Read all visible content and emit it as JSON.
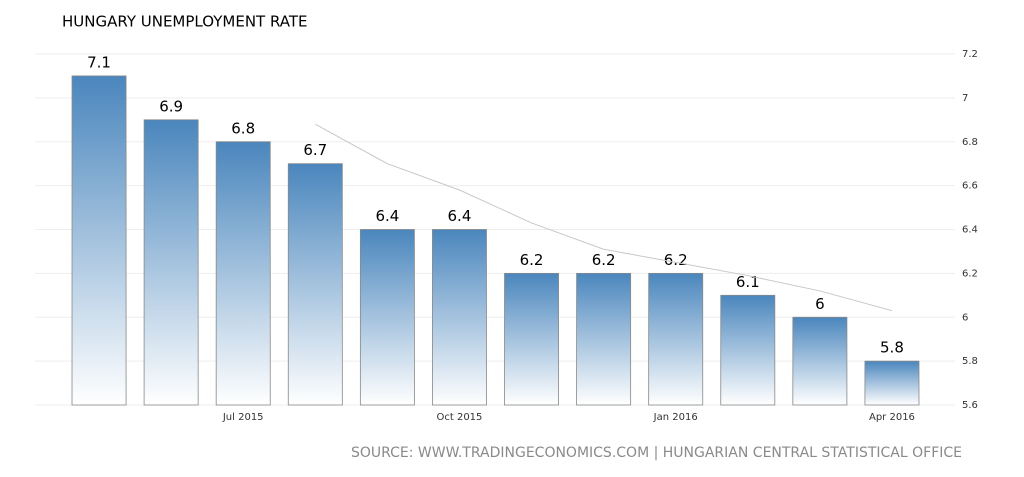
{
  "chart_data": {
    "type": "bar",
    "title": "HUNGARY UNEMPLOYMENT RATE",
    "source": "SOURCE: WWW.TRADINGECONOMICS.COM | HUNGARIAN CENTRAL STATISTICAL OFFICE",
    "categories": [
      null,
      null,
      "Jul 2015",
      null,
      null,
      "Oct 2015",
      null,
      null,
      "Jan 2016",
      null,
      null,
      "Apr 2016"
    ],
    "values": [
      7.1,
      6.9,
      6.8,
      6.7,
      6.4,
      6.4,
      6.2,
      6.2,
      6.2,
      6.1,
      6,
      5.8
    ],
    "trend_values": [
      null,
      null,
      null,
      6.88,
      6.7,
      6.58,
      6.43,
      6.31,
      6.25,
      6.19,
      6.12,
      6.03
    ],
    "color": "#4a86bd",
    "trend_color": "#c8c8c8",
    "ylim": [
      5.6,
      7.2
    ],
    "yticks": [
      5.6,
      5.8,
      6,
      6.2,
      6.4,
      6.6,
      6.8,
      7,
      7.2
    ],
    "grid": true
  }
}
